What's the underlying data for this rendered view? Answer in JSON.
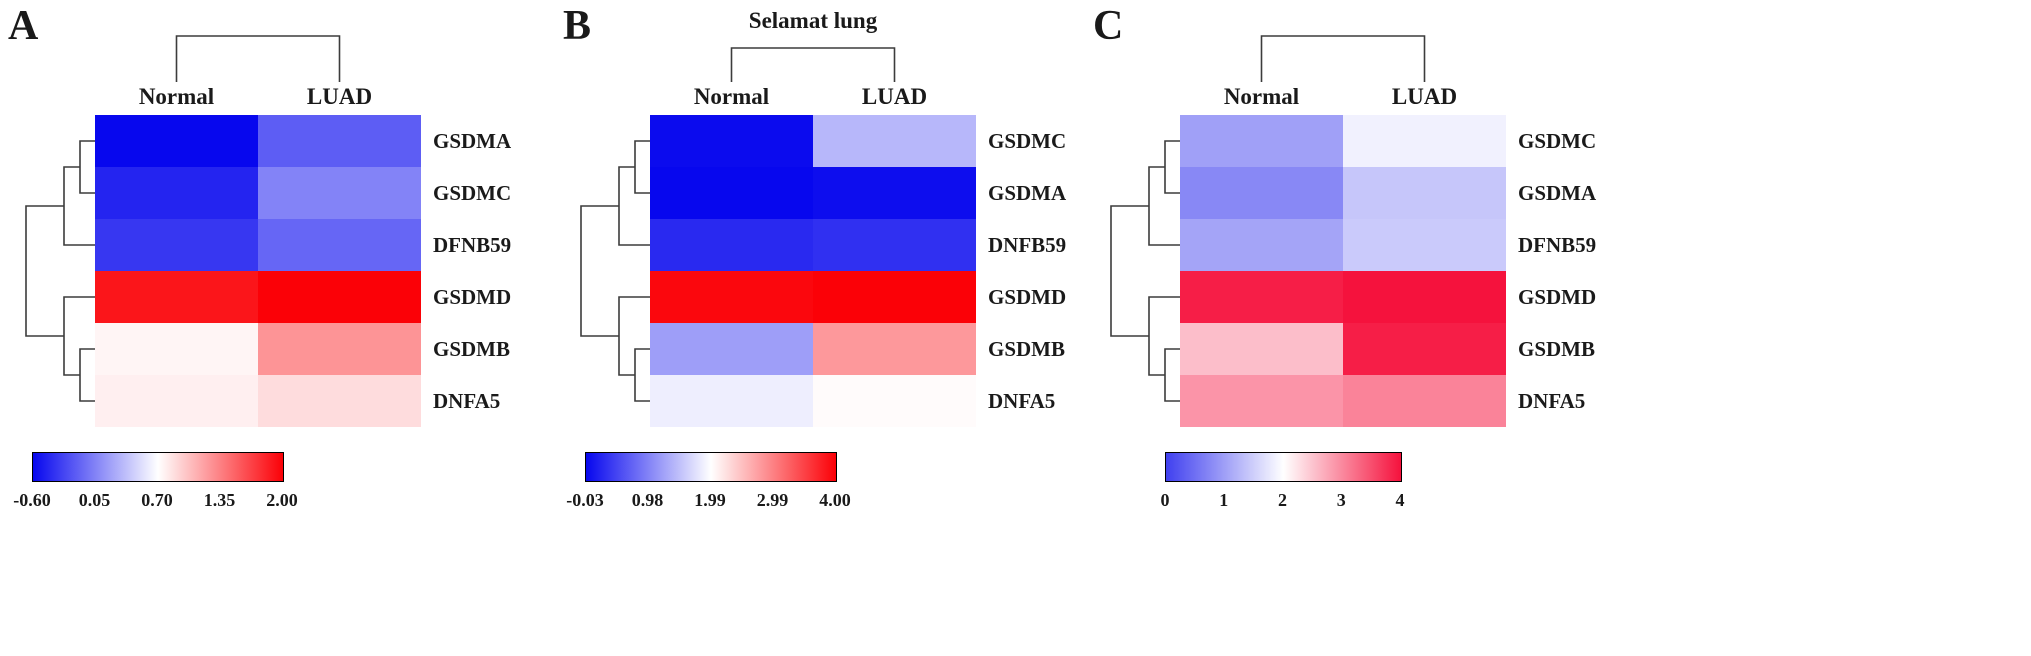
{
  "figure": {
    "background": "#ffffff",
    "text_color": "#1a1a1a"
  },
  "chart_data": [
    {
      "type": "heatmap",
      "panel_letter": "A",
      "title": "",
      "columns": [
        "Normal",
        "LUAD"
      ],
      "rows": [
        "GSDMA",
        "GSDMC",
        "DFNB59",
        "GSDMD",
        "GSDMB",
        "DNFA5"
      ],
      "values": [
        [
          -0.6,
          -0.15
        ],
        [
          -0.45,
          0.05
        ],
        [
          -0.35,
          -0.1
        ],
        [
          1.9,
          2.0
        ],
        [
          0.75,
          1.25
        ],
        [
          0.78,
          0.88
        ]
      ],
      "value_range": [
        -0.6,
        2.0
      ],
      "colorbar_ticks": [
        "-0.60",
        "0.05",
        "0.70",
        "1.35",
        "2.00"
      ],
      "colormap": {
        "low": "#0707ee",
        "mid": "#ffffff",
        "high": "#fb0107"
      },
      "row_clustering": "((GSDMA,GSDMC),DFNB59),(GSDMD,(GSDMB,DNFA5))",
      "column_clustering": "(Normal,LUAD)"
    },
    {
      "type": "heatmap",
      "panel_letter": "B",
      "title": "Selamat lung",
      "columns": [
        "Normal",
        "LUAD"
      ],
      "rows": [
        "GSDMC",
        "GSDMA",
        "DNFB59",
        "GSDMD",
        "GSDMB",
        "DNFA5"
      ],
      "values": [
        [
          0.0,
          1.4
        ],
        [
          -0.03,
          0.02
        ],
        [
          0.25,
          0.3
        ],
        [
          3.95,
          4.0
        ],
        [
          1.2,
          2.8
        ],
        [
          1.85,
          2.02
        ]
      ],
      "value_range": [
        -0.03,
        4.0
      ],
      "colorbar_ticks": [
        "-0.03",
        "0.98",
        "1.99",
        "2.99",
        "4.00"
      ],
      "colormap": {
        "low": "#0707ee",
        "mid": "#ffffff",
        "high": "#fb0107"
      },
      "row_clustering": "((GSDMC,GSDMA),DNFB59),(GSDMD,(GSDMB,DNFA5))",
      "column_clustering": "(Normal,LUAD)"
    },
    {
      "type": "heatmap",
      "panel_letter": "C",
      "title": "",
      "columns": [
        "Normal",
        "LUAD"
      ],
      "rows": [
        "GSDMC",
        "GSDMA",
        "DFNB59",
        "GSDMD",
        "GSDMB",
        "DNFA5"
      ],
      "values": [
        [
          1.0,
          1.85
        ],
        [
          0.75,
          1.4
        ],
        [
          1.05,
          1.45
        ],
        [
          3.9,
          4.0
        ],
        [
          2.55,
          3.9
        ],
        [
          2.9,
          3.05
        ]
      ],
      "value_range": [
        0,
        4
      ],
      "colorbar_ticks": [
        "0",
        "1",
        "2",
        "3",
        "4"
      ],
      "colormap": {
        "low": "#4040ef",
        "mid": "#ffffff",
        "high": "#f5123d"
      },
      "row_clustering": "((GSDMC,GSDMA),DFNB59),(GSDMD,(GSDMB,DNFA5))",
      "column_clustering": "(Normal,LUAD)"
    }
  ]
}
